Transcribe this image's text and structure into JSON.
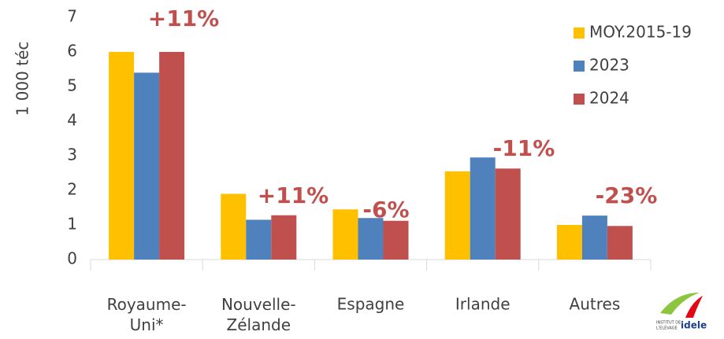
{
  "chart_data": {
    "type": "bar",
    "y_label": "1 000 téc",
    "categories": [
      "Royaume-Uni*",
      "Nouvelle-Zélande",
      "Espagne",
      "Irlande",
      "Autres"
    ],
    "series": [
      {
        "name": "MOY.2015-19",
        "color": "#ffc000",
        "values": [
          6.0,
          1.9,
          1.45,
          2.55,
          1.0
        ]
      },
      {
        "name": "2023",
        "color": "#4f81bd",
        "values": [
          5.4,
          1.15,
          1.2,
          2.95,
          1.27
        ]
      },
      {
        "name": "2024",
        "color": "#c0504d",
        "values": [
          6.0,
          1.28,
          1.12,
          2.63,
          0.97
        ]
      }
    ],
    "annotations": [
      "+11%",
      "+11%",
      "-6%",
      "-11%",
      "-23%"
    ],
    "annotation_color": "#c0504d",
    "ylim": [
      0,
      7
    ],
    "yticks": [
      0,
      1,
      2,
      3,
      4,
      5,
      6,
      7
    ],
    "legend": "top-right",
    "logo": {
      "line1": "INSTITUT DE",
      "line2": "L'ELEVAGE",
      "brand": "idele"
    }
  }
}
